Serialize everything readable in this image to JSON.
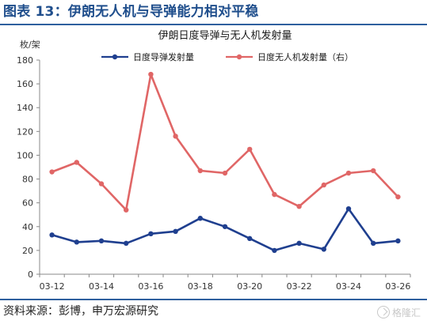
{
  "figure": {
    "title": "图表 13：伊朗无人机与导弹能力相对平稳",
    "source": "资料来源：彭博，申万宏源研究",
    "watermark": "格隆汇"
  },
  "colors": {
    "title": "#1f4e8c",
    "rule": "#2e5f9e",
    "missile": "#1f3f8f",
    "drone": "#e06666",
    "axis": "#888888"
  },
  "chart_data": {
    "type": "line",
    "title": "伊朗日度导弹与无人机发射量",
    "ylabel": "枚/架",
    "ylim": [
      0,
      180
    ],
    "yticks": [
      "0",
      "20",
      "40",
      "60",
      "80",
      "100",
      "120",
      "140",
      "160",
      "180"
    ],
    "x": [
      "03-12",
      "03-13",
      "03-14",
      "03-15",
      "03-16",
      "03-17",
      "03-18",
      "03-19",
      "03-20",
      "03-21",
      "03-22",
      "03-23",
      "03-24",
      "03-25",
      "03-26"
    ],
    "xtick_labels": [
      "03-12",
      "03-14",
      "03-16",
      "03-18",
      "03-20",
      "03-22",
      "03-24",
      "03-26"
    ],
    "legend_position": "top",
    "grid": false,
    "series": [
      {
        "name": "日度导弹发射量",
        "axis": "left",
        "color": "#1f3f8f",
        "marker": true,
        "values": [
          33,
          27,
          28,
          26,
          34,
          36,
          47,
          40,
          30,
          20,
          26,
          21,
          55,
          26,
          28
        ]
      },
      {
        "name": "日度无人机发射量（右）",
        "axis": "right",
        "color": "#e06666",
        "marker": true,
        "values": [
          86,
          94,
          76,
          54,
          168,
          116,
          87,
          85,
          105,
          67,
          57,
          75,
          85,
          87,
          65
        ]
      }
    ]
  }
}
